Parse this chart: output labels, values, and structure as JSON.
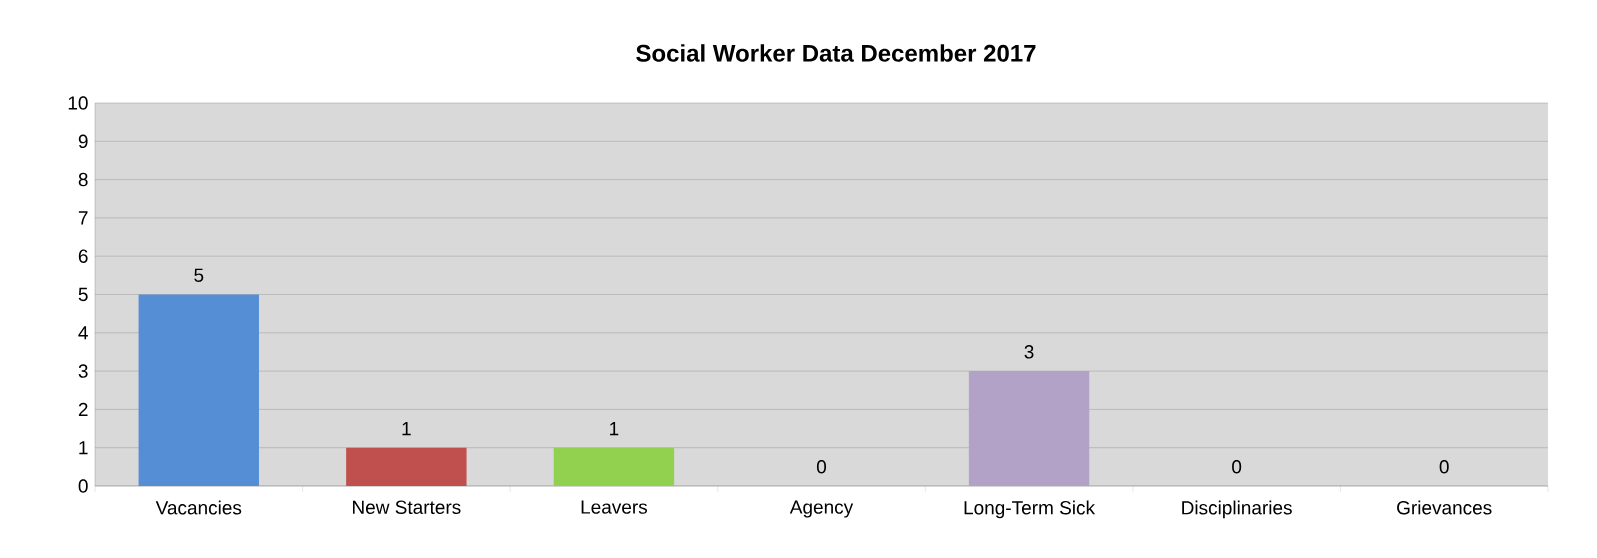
{
  "chart_data": {
    "type": "bar",
    "title": "Social Worker Data December 2017",
    "categories": [
      "Vacancies",
      "New Starters",
      "Leavers",
      "Agency",
      "Long-Term Sick",
      "Disciplinaries",
      "Grievances"
    ],
    "values": [
      5,
      1,
      1,
      0,
      3,
      0,
      0
    ],
    "colors": [
      "#558ed5",
      "#c0504d",
      "#92d050",
      "#f79646",
      "#b3a2c7",
      "#4bacc6",
      "#1f497d"
    ],
    "ylim": [
      0,
      10
    ],
    "yticks": [
      0,
      1,
      2,
      3,
      4,
      5,
      6,
      7,
      8,
      9,
      10
    ],
    "grid": "y",
    "data_labels": true
  }
}
